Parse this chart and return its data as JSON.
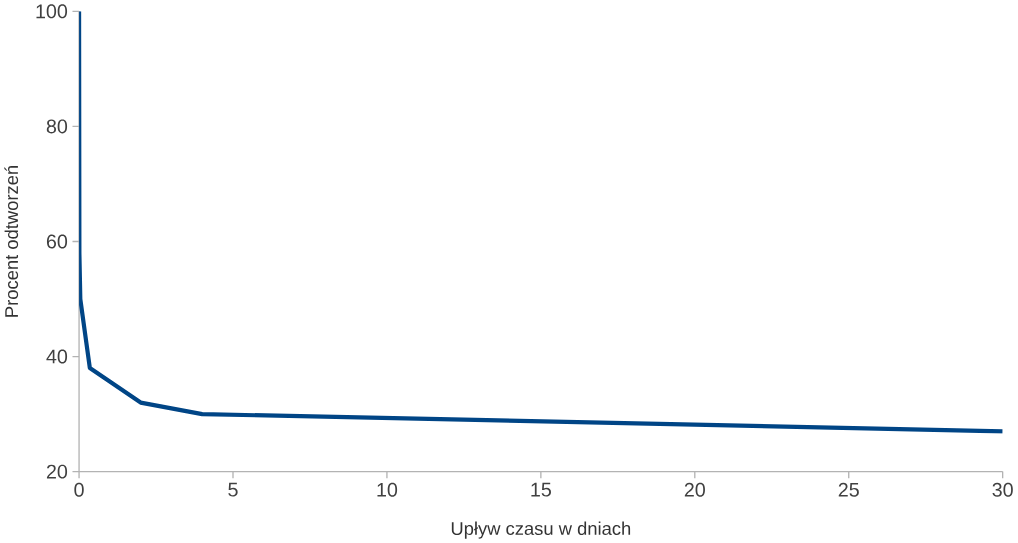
{
  "chart_data": {
    "type": "line",
    "xlabel": "Upływ czasu w dniach",
    "ylabel": "Procent odtworzeń",
    "x": [
      0,
      0.01,
      0.04,
      0.35,
      2,
      4,
      30
    ],
    "series": [
      {
        "color": "#004586",
        "values": [
          100,
          58,
          50,
          38,
          32,
          30,
          27
        ]
      }
    ],
    "xlim": [
      0,
      30
    ],
    "xticks": [
      0,
      5,
      10,
      15,
      20,
      25,
      30
    ],
    "ylim": [
      20,
      100
    ],
    "yticks": [
      20,
      40,
      60,
      80,
      100
    ],
    "grid": false,
    "marker": "none",
    "line_style": "solid"
  }
}
